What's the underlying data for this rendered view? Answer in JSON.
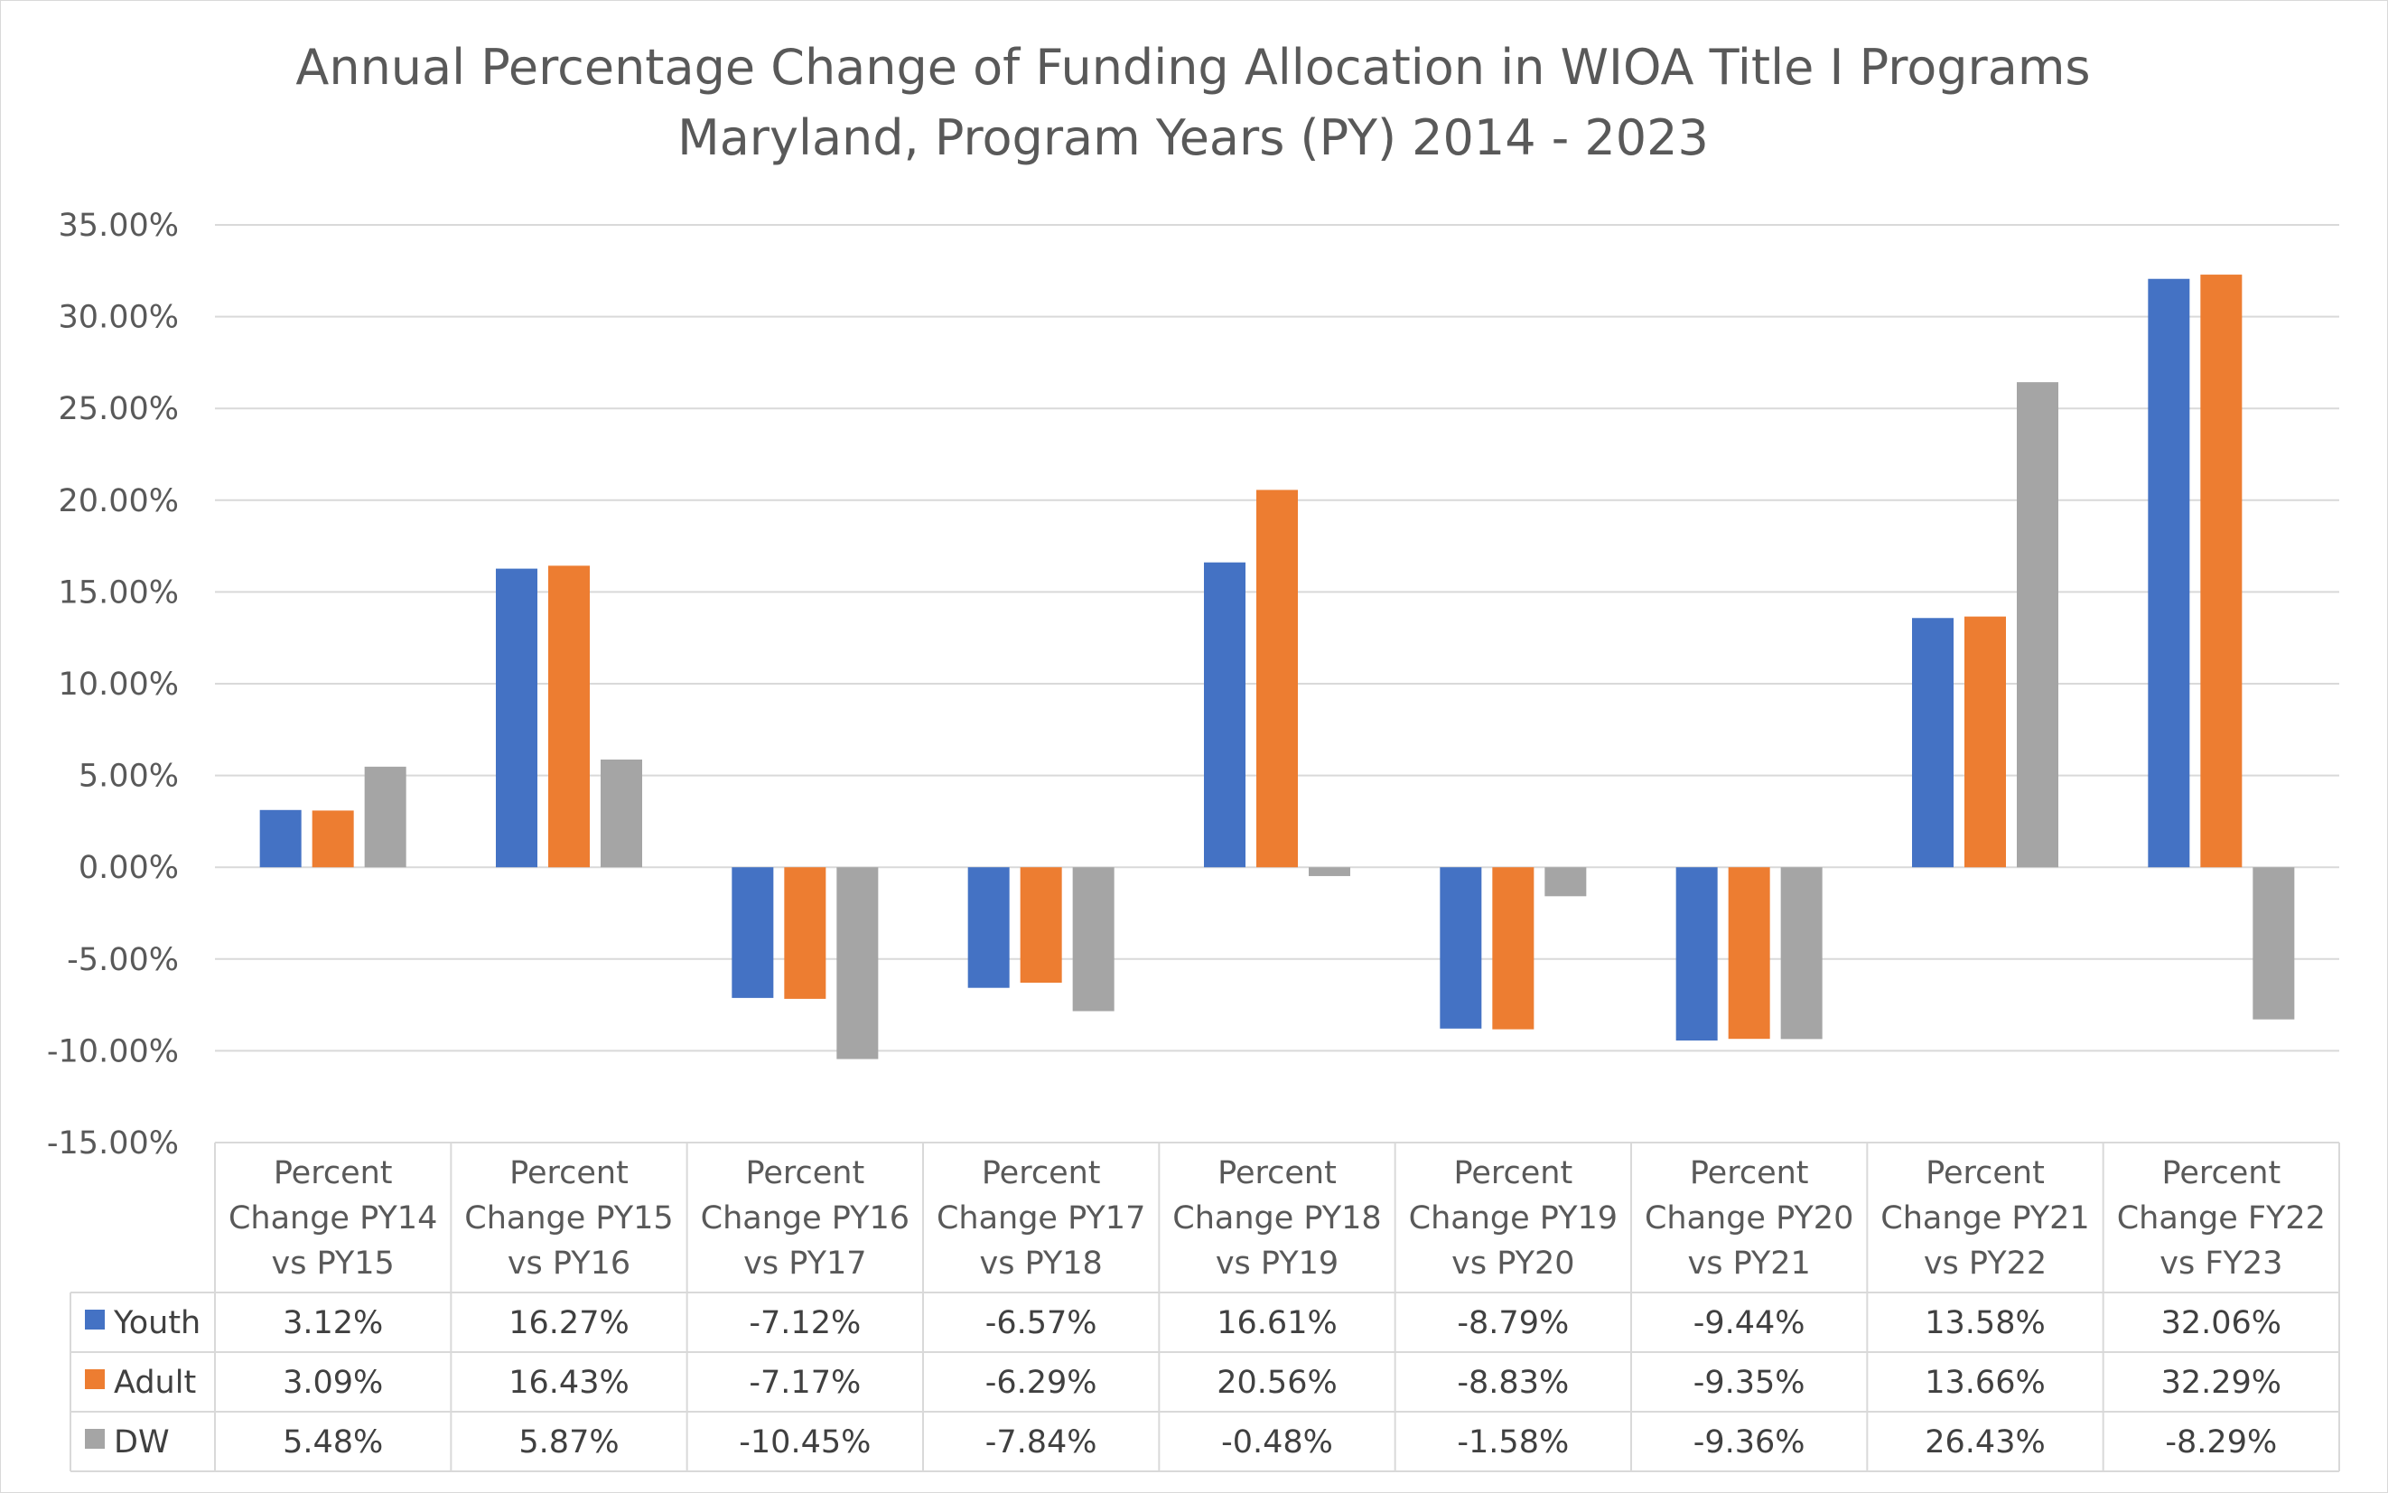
{
  "chart_data": {
    "type": "bar",
    "title": "Annual Percentage Change of Funding Allocation in WIOA Title I Programs",
    "subtitle": "Maryland, Program Years (PY) 2014 - 2023",
    "categories": [
      [
        "Percent",
        "Change PY14",
        "vs PY15"
      ],
      [
        "Percent",
        "Change PY15",
        "vs PY16"
      ],
      [
        "Percent",
        "Change PY16",
        "vs PY17"
      ],
      [
        "Percent",
        "Change PY17",
        "vs PY18"
      ],
      [
        "Percent",
        "Change PY18",
        "vs PY19"
      ],
      [
        "Percent",
        "Change PY19",
        "vs PY20"
      ],
      [
        "Percent",
        "Change PY20",
        "vs PY21"
      ],
      [
        "Percent",
        "Change PY21",
        "vs PY22"
      ],
      [
        "Percent",
        "Change FY22",
        "vs FY23"
      ]
    ],
    "series": [
      {
        "name": "Youth",
        "color": "#4472c4",
        "values": [
          3.12,
          16.27,
          -7.12,
          -6.57,
          16.61,
          -8.79,
          -9.44,
          13.58,
          32.06
        ],
        "labels": [
          "3.12%",
          "16.27%",
          "-7.12%",
          "-6.57%",
          "16.61%",
          "-8.79%",
          "-9.44%",
          "13.58%",
          "32.06%"
        ]
      },
      {
        "name": "Adult",
        "color": "#ed7d31",
        "values": [
          3.09,
          16.43,
          -7.17,
          -6.29,
          20.56,
          -8.83,
          -9.35,
          13.66,
          32.29
        ],
        "labels": [
          "3.09%",
          "16.43%",
          "-7.17%",
          "-6.29%",
          "20.56%",
          "-8.83%",
          "-9.35%",
          "13.66%",
          "32.29%"
        ]
      },
      {
        "name": "DW",
        "color": "#a5a5a5",
        "values": [
          5.48,
          5.87,
          -10.45,
          -7.84,
          -0.48,
          -1.58,
          -9.36,
          26.43,
          -8.29
        ],
        "labels": [
          "5.48%",
          "5.87%",
          "-10.45%",
          "-7.84%",
          "-0.48%",
          "-1.58%",
          "-9.36%",
          "26.43%",
          "-8.29%"
        ]
      }
    ],
    "ylim": [
      -15,
      35
    ],
    "yticks": [
      35,
      30,
      25,
      20,
      15,
      10,
      5,
      0,
      -5,
      -10,
      -15
    ],
    "ytick_labels": [
      "35.00%",
      "30.00%",
      "25.00%",
      "20.00%",
      "15.00%",
      "10.00%",
      "5.00%",
      "0.00%",
      "-5.00%",
      "-10.00%",
      "-15.00%"
    ],
    "grid": true,
    "legend": "data-table-left",
    "data_table": true
  }
}
